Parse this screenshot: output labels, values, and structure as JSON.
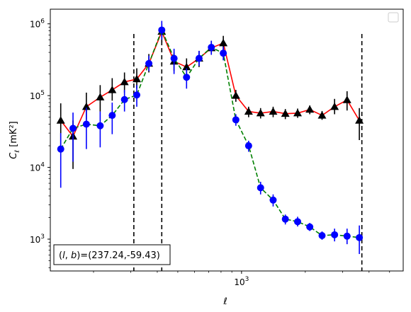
{
  "chart_data": {
    "type": "line",
    "xscale": "log",
    "yscale": "log",
    "xlim": [
      125,
      5800
    ],
    "ylim": [
      360,
      1600000
    ],
    "xlabel": "ℓ",
    "ylabel": "C_ℓ [mK²]",
    "xticks": [
      {
        "value": 1000,
        "base": "10",
        "exp": "3"
      }
    ],
    "yticks": [
      {
        "value": 1000,
        "base": "10",
        "exp": "3"
      },
      {
        "value": 10000,
        "base": "10",
        "exp": "4"
      },
      {
        "value": 100000,
        "base": "10",
        "exp": "5"
      },
      {
        "value": 1000000,
        "base": "10",
        "exp": "6"
      }
    ],
    "vlines": [
      310,
      420,
      3700
    ],
    "annotation": "(l, b)=(237.24,-59.43)",
    "legend": "top-right",
    "series": [
      {
        "marker": "triangle",
        "color": "#ff0000",
        "marker_color": "#000000",
        "errorbar_color": "#000000",
        "linestyle": "solid",
        "points": [
          {
            "x": 140,
            "y": 45000,
            "lo": 20000,
            "hi": 78000
          },
          {
            "x": 160,
            "y": 27000,
            "lo": 9500,
            "hi": 45000
          },
          {
            "x": 185,
            "y": 70000,
            "lo": 46000,
            "hi": 110000
          },
          {
            "x": 215,
            "y": 95000,
            "lo": 60000,
            "hi": 140000
          },
          {
            "x": 245,
            "y": 120000,
            "lo": 85000,
            "hi": 175000
          },
          {
            "x": 280,
            "y": 155000,
            "lo": 110000,
            "hi": 210000
          },
          {
            "x": 320,
            "y": 170000,
            "lo": 125000,
            "hi": 240000
          },
          {
            "x": 365,
            "y": 280000,
            "lo": 210000,
            "hi": 380000
          },
          {
            "x": 420,
            "y": 780000,
            "lo": 550000,
            "hi": 1000000
          },
          {
            "x": 480,
            "y": 300000,
            "lo": 220000,
            "hi": 400000
          },
          {
            "x": 550,
            "y": 250000,
            "lo": 180000,
            "hi": 330000
          },
          {
            "x": 630,
            "y": 330000,
            "lo": 250000,
            "hi": 420000
          },
          {
            "x": 720,
            "y": 460000,
            "lo": 380000,
            "hi": 580000
          },
          {
            "x": 820,
            "y": 540000,
            "lo": 430000,
            "hi": 680000
          },
          {
            "x": 940,
            "y": 100000,
            "lo": 82000,
            "hi": 120000
          },
          {
            "x": 1080,
            "y": 60000,
            "lo": 50000,
            "hi": 70000
          },
          {
            "x": 1230,
            "y": 57000,
            "lo": 48000,
            "hi": 67000
          },
          {
            "x": 1410,
            "y": 60000,
            "lo": 50000,
            "hi": 70000
          },
          {
            "x": 1610,
            "y": 56000,
            "lo": 47000,
            "hi": 65000
          },
          {
            "x": 1840,
            "y": 57000,
            "lo": 49000,
            "hi": 66000
          },
          {
            "x": 2100,
            "y": 64000,
            "lo": 55000,
            "hi": 73000
          },
          {
            "x": 2400,
            "y": 53000,
            "lo": 46000,
            "hi": 61000
          },
          {
            "x": 2750,
            "y": 70000,
            "lo": 55000,
            "hi": 90000
          },
          {
            "x": 3150,
            "y": 87000,
            "lo": 62000,
            "hi": 115000
          },
          {
            "x": 3600,
            "y": 45000,
            "lo": 24000,
            "hi": 67000
          }
        ]
      },
      {
        "marker": "circle",
        "color": "#008000",
        "marker_color": "#0000ff",
        "errorbar_color": "#0000ff",
        "linestyle": "dashed",
        "points": [
          {
            "x": 140,
            "y": 18000,
            "lo": 5200,
            "hi": 30000
          },
          {
            "x": 160,
            "y": 35000,
            "lo": 12000,
            "hi": 58000
          },
          {
            "x": 185,
            "y": 40000,
            "lo": 18000,
            "hi": 68000
          },
          {
            "x": 215,
            "y": 38000,
            "lo": 19000,
            "hi": 60000
          },
          {
            "x": 245,
            "y": 53000,
            "lo": 29000,
            "hi": 80000
          },
          {
            "x": 280,
            "y": 88000,
            "lo": 60000,
            "hi": 120000
          },
          {
            "x": 320,
            "y": 102000,
            "lo": 70000,
            "hi": 140000
          },
          {
            "x": 365,
            "y": 280000,
            "lo": 220000,
            "hi": 360000
          },
          {
            "x": 420,
            "y": 820000,
            "lo": 600000,
            "hi": 1100000
          },
          {
            "x": 480,
            "y": 330000,
            "lo": 200000,
            "hi": 450000
          },
          {
            "x": 550,
            "y": 180000,
            "lo": 125000,
            "hi": 240000
          },
          {
            "x": 630,
            "y": 330000,
            "lo": 260000,
            "hi": 420000
          },
          {
            "x": 720,
            "y": 470000,
            "lo": 370000,
            "hi": 580000
          },
          {
            "x": 820,
            "y": 390000,
            "lo": 310000,
            "hi": 480000
          },
          {
            "x": 940,
            "y": 46000,
            "lo": 38000,
            "hi": 55000
          },
          {
            "x": 1080,
            "y": 20000,
            "lo": 16500,
            "hi": 23500
          },
          {
            "x": 1230,
            "y": 5200,
            "lo": 4200,
            "hi": 6300
          },
          {
            "x": 1410,
            "y": 3500,
            "lo": 2850,
            "hi": 4200
          },
          {
            "x": 1610,
            "y": 1900,
            "lo": 1600,
            "hi": 2200
          },
          {
            "x": 1840,
            "y": 1750,
            "lo": 1500,
            "hi": 2050
          },
          {
            "x": 2100,
            "y": 1480,
            "lo": 1300,
            "hi": 1680
          },
          {
            "x": 2400,
            "y": 1120,
            "lo": 980,
            "hi": 1280
          },
          {
            "x": 2750,
            "y": 1150,
            "lo": 930,
            "hi": 1400
          },
          {
            "x": 3150,
            "y": 1100,
            "lo": 850,
            "hi": 1400
          },
          {
            "x": 3600,
            "y": 1050,
            "lo": 620,
            "hi": 1550
          }
        ]
      }
    ]
  }
}
